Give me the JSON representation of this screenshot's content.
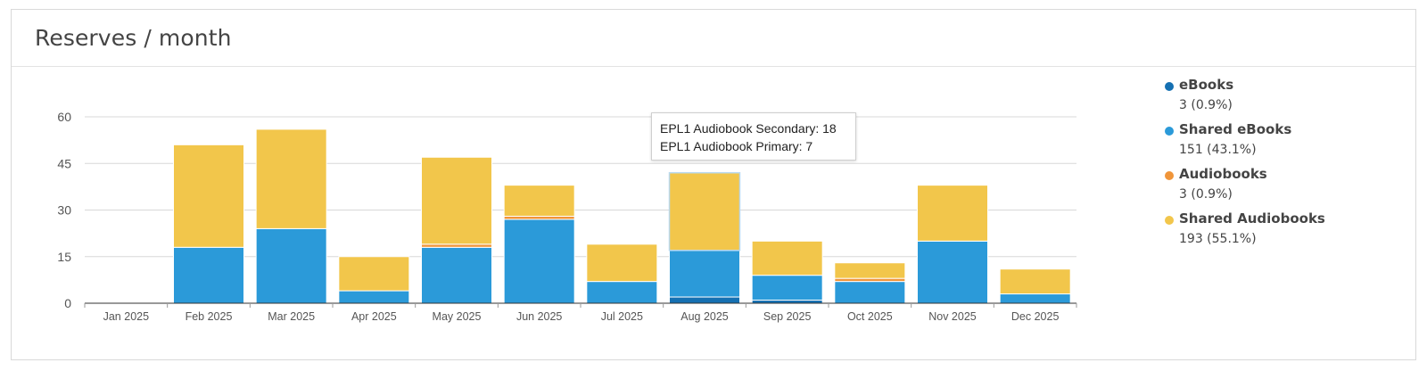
{
  "header": {
    "title": "Reserves / month"
  },
  "tooltip": {
    "lines": [
      "EPL1 Audiobook Secondary: 18",
      "EPL1 Audiobook Primary: 7"
    ]
  },
  "legend": [
    {
      "name": "eBooks",
      "value": "3 (0.9%)",
      "color": "#1570b2"
    },
    {
      "name": "Shared eBooks",
      "value": "151 (43.1%)",
      "color": "#2b9ad9"
    },
    {
      "name": "Audiobooks",
      "value": "3 (0.9%)",
      "color": "#f0953a"
    },
    {
      "name": "Shared Audiobooks",
      "value": "193 (55.1%)",
      "color": "#f2c64b"
    }
  ],
  "chart_data": {
    "type": "bar",
    "stacked": true,
    "categories": [
      "Jan 2025",
      "Feb 2025",
      "Mar 2025",
      "Apr 2025",
      "May 2025",
      "Jun 2025",
      "Jul 2025",
      "Aug 2025",
      "Sep 2025",
      "Oct 2025",
      "Nov 2025",
      "Dec 2025"
    ],
    "series": [
      {
        "name": "eBooks",
        "color": "#1570b2",
        "values": [
          0,
          0,
          0,
          0,
          0,
          0,
          0,
          2,
          1,
          0,
          0,
          0
        ]
      },
      {
        "name": "Shared eBooks",
        "color": "#2b9ad9",
        "values": [
          0,
          18,
          24,
          4,
          18,
          27,
          7,
          15,
          8,
          7,
          20,
          3
        ]
      },
      {
        "name": "Audiobooks",
        "color": "#f0953a",
        "values": [
          0,
          0,
          0,
          0,
          1,
          1,
          0,
          0,
          0,
          1,
          0,
          0
        ]
      },
      {
        "name": "Shared Audiobooks",
        "color": "#f2c64b",
        "values": [
          0,
          33,
          32,
          11,
          28,
          10,
          12,
          25,
          11,
          5,
          18,
          8
        ]
      }
    ],
    "yticks": [
      0,
      15,
      30,
      45,
      60
    ],
    "ylim": [
      0,
      60
    ],
    "grid": true,
    "legend_position": "right"
  }
}
